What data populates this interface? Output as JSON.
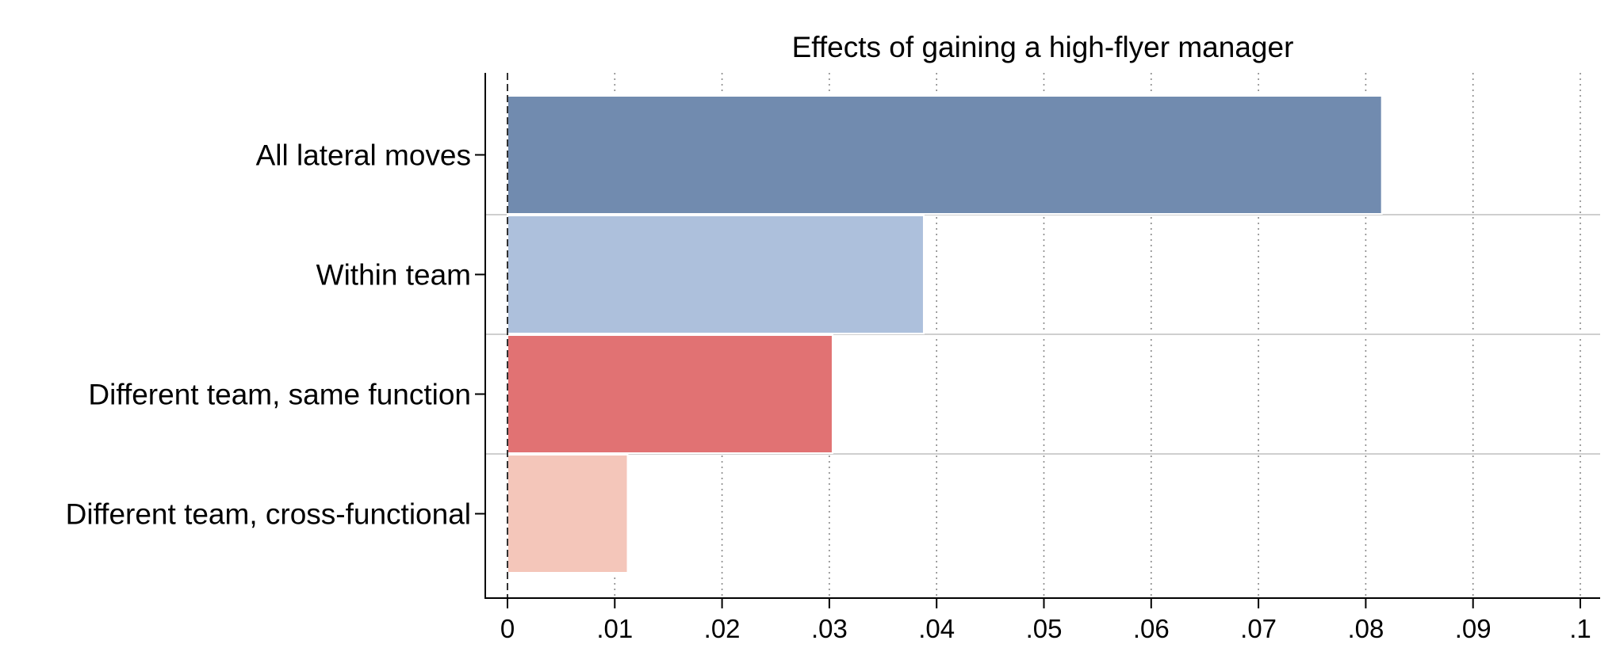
{
  "chart_data": {
    "type": "bar",
    "orientation": "horizontal",
    "title": "Effects of gaining a high-flyer manager",
    "xlabel": "",
    "ylabel": "",
    "categories": [
      "All lateral moves",
      "Within team",
      "Different team, same function",
      "Different team, cross-functional"
    ],
    "values": [
      0.0815,
      0.0388,
      0.0303,
      0.0112
    ],
    "colors": [
      "#718BAF",
      "#ADC0DC",
      "#E17273",
      "#F4C6BA"
    ],
    "xlim": [
      0,
      0.1
    ],
    "x_ticks": [
      0,
      0.01,
      0.02,
      0.03,
      0.04,
      0.05,
      0.06,
      0.07,
      0.08,
      0.09,
      0.1
    ],
    "x_tick_labels": [
      "0",
      ".01",
      ".02",
      ".03",
      ".04",
      ".05",
      ".06",
      ".07",
      ".08",
      ".09",
      ".1"
    ],
    "grid": "vertical dotted",
    "zero_line": "dashed",
    "legend": "none"
  }
}
